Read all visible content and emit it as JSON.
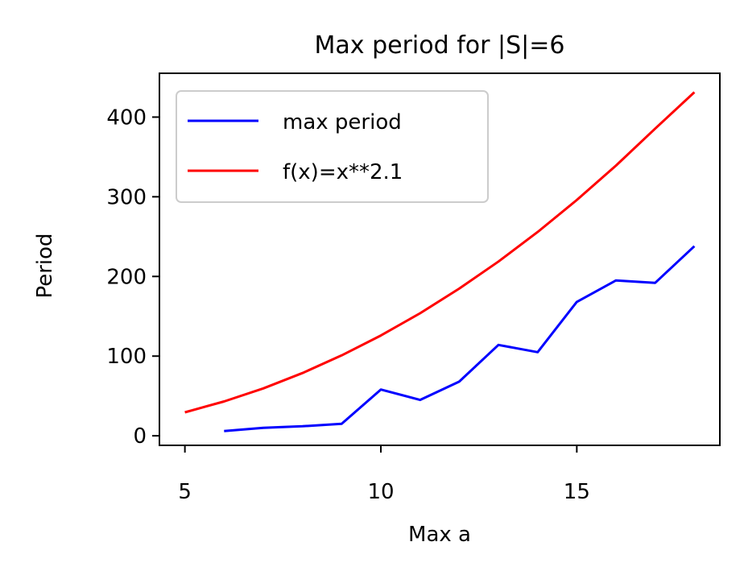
{
  "chart_data": {
    "type": "line",
    "title": "Max period for |S|=6",
    "xlabel": "Max a",
    "ylabel": "Period",
    "xlim": [
      4.35,
      18.65
    ],
    "ylim": [
      -12,
      455
    ],
    "xticks": [
      5,
      10,
      15
    ],
    "yticks": [
      0,
      100,
      200,
      300,
      400
    ],
    "xtick_labels": [
      "5",
      "10",
      "15"
    ],
    "ytick_labels": [
      "0",
      "100",
      "200",
      "300",
      "400"
    ],
    "grid": false,
    "legend_position": "upper-left",
    "series": [
      {
        "name": "max period",
        "color": "#0000ff",
        "x": [
          6,
          7,
          8,
          9,
          10,
          11,
          12,
          13,
          14,
          15,
          16,
          17,
          18
        ],
        "y": [
          6,
          10,
          12,
          15,
          58,
          45,
          68,
          114,
          105,
          168,
          195,
          192,
          238
        ]
      },
      {
        "name": "f(x)=x**2.1",
        "color": "#ff0000",
        "x": [
          5,
          6,
          7,
          8,
          9,
          10,
          11,
          12,
          13,
          14,
          15,
          16,
          17,
          18
        ],
        "y": [
          29.4,
          43.1,
          59.5,
          78.8,
          100.9,
          125.9,
          153.8,
          184.7,
          218.7,
          255.8,
          295.9,
          339.2,
          385.6,
          431.2
        ]
      }
    ]
  }
}
